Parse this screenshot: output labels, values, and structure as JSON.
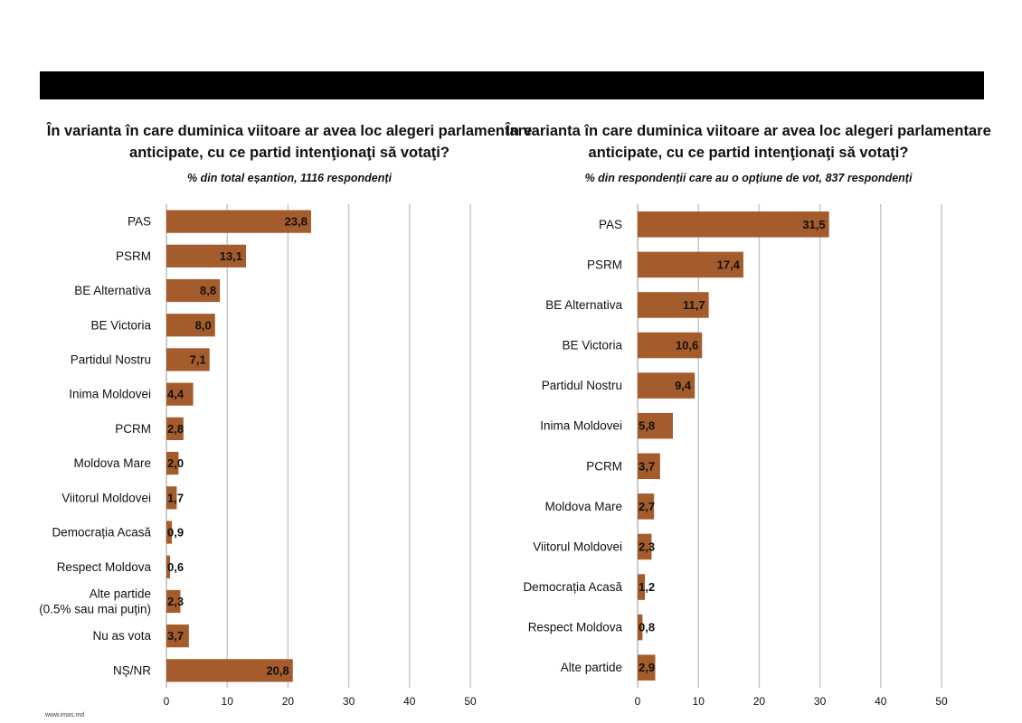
{
  "source_url": "www.imas.md",
  "bar_color": "#A55C2C",
  "grid_color": "#c8c8c8",
  "chart_data": [
    {
      "type": "bar",
      "orientation": "horizontal",
      "title": "În varianta în care duminica viitoare ar avea loc alegeri parlamentare anticipate, cu ce partid intenţionaţi să votaţi?",
      "subtitle": "% din total eșantion, 1116 respondenți",
      "categories": [
        "PAS",
        "PSRM",
        "BE Alternativa",
        "BE Victoria",
        "Partidul Nostru",
        "Inima Moldovei",
        "PCRM",
        "Moldova Mare",
        "Viitorul Moldovei",
        "Democrația Acasă",
        "Respect Moldova",
        "Alte partide\n(0.5% sau mai puțin)",
        "Nu as vota",
        "NȘ/NR"
      ],
      "values": [
        23.8,
        13.1,
        8.8,
        8.0,
        7.1,
        4.4,
        2.8,
        2.0,
        1.7,
        0.9,
        0.6,
        2.3,
        3.7,
        20.8
      ],
      "value_labels": [
        "23,8",
        "13,1",
        "8,8",
        "8,0",
        "7,1",
        "4,4",
        "2,8",
        "2,0",
        "1,7",
        "0,9",
        "0,6",
        "2,3",
        "3,7",
        "20,8"
      ],
      "xlim": [
        0,
        50
      ],
      "xticks": [
        0,
        10,
        20,
        30,
        40,
        50
      ],
      "grid": true
    },
    {
      "type": "bar",
      "orientation": "horizontal",
      "title": "În varianta în care duminica viitoare ar avea loc alegeri parlamentare anticipate, cu ce partid intenţionaţi să votaţi?",
      "subtitle": "% din respondenții care au o opțiune de vot, 837 respondenți",
      "categories": [
        "PAS",
        "PSRM",
        "BE Alternativa",
        "BE Victoria",
        "Partidul Nostru",
        "Inima Moldovei",
        "PCRM",
        "Moldova Mare",
        "Viitorul Moldovei",
        "Democrația Acasă",
        "Respect Moldova",
        "Alte partide"
      ],
      "values": [
        31.5,
        17.4,
        11.7,
        10.6,
        9.4,
        5.8,
        3.7,
        2.7,
        2.3,
        1.2,
        0.8,
        2.9
      ],
      "value_labels": [
        "31,5",
        "17,4",
        "11,7",
        "10,6",
        "9,4",
        "5,8",
        "3,7",
        "2,7",
        "2,3",
        "1,2",
        "0,8",
        "2,9"
      ],
      "xlim": [
        0,
        50
      ],
      "xticks": [
        0,
        10,
        20,
        30,
        40,
        50
      ],
      "grid": true
    }
  ]
}
